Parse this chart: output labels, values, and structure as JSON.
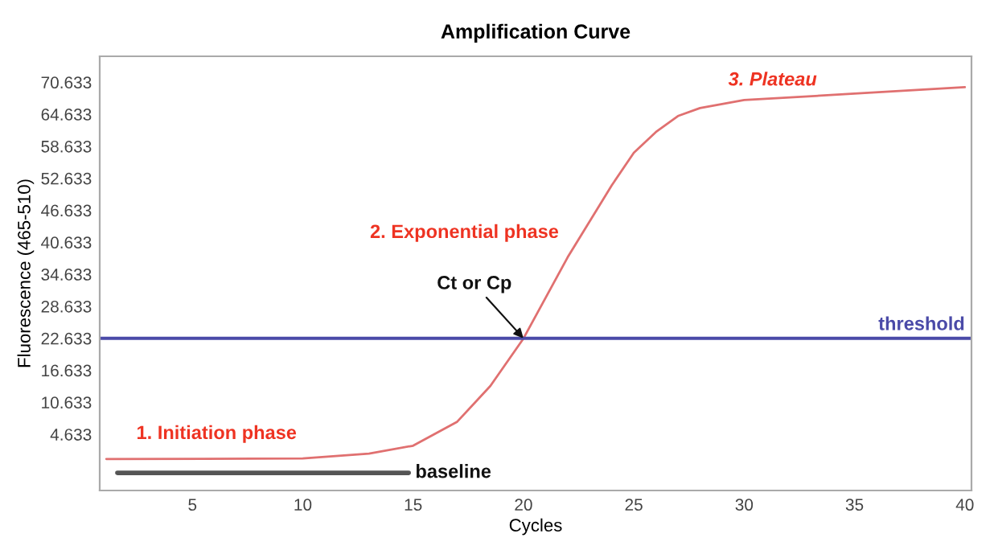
{
  "chart_data": {
    "type": "line",
    "title": "Amplification Curve",
    "xlabel": "Cycles",
    "ylabel": "Fluorescence (465-510)",
    "series": [
      {
        "x": [
          1.1,
          10,
          13,
          15,
          17,
          18.5,
          20,
          22,
          24,
          25,
          26,
          27,
          28,
          30,
          35,
          40
        ],
        "values": [
          0,
          0.1,
          1,
          2.5,
          7,
          13.7,
          22.6,
          37.8,
          51.3,
          57.4,
          61.3,
          64.3,
          65.8,
          67.3,
          68.5,
          69.7
        ],
        "color": "#e07070"
      },
      {
        "name": "baseline",
        "x": [
          1.6,
          14.8
        ],
        "values": [
          -2.6,
          -2.6
        ],
        "color": "#555555"
      }
    ],
    "ref_lines": [
      {
        "axis": "y",
        "value": 22.633,
        "label": "threshold",
        "color": "#4a4aa8"
      }
    ],
    "annotations": [
      "1. Initiation phase",
      "2. Exponential phase",
      "3. Plateau",
      {
        "text": "Ct or Cp",
        "x": 20,
        "y": 22.633
      }
    ],
    "xlim": [
      0.8,
      40.3
    ],
    "ylim": [
      -5.9,
      75.5
    ],
    "xticks": [
      5,
      10,
      15,
      20,
      25,
      30,
      35,
      40
    ],
    "yticks": [
      4.633,
      10.633,
      16.633,
      22.633,
      28.633,
      34.633,
      40.633,
      46.633,
      52.633,
      58.633,
      64.633,
      70.633
    ],
    "grid": false,
    "legend": false
  }
}
